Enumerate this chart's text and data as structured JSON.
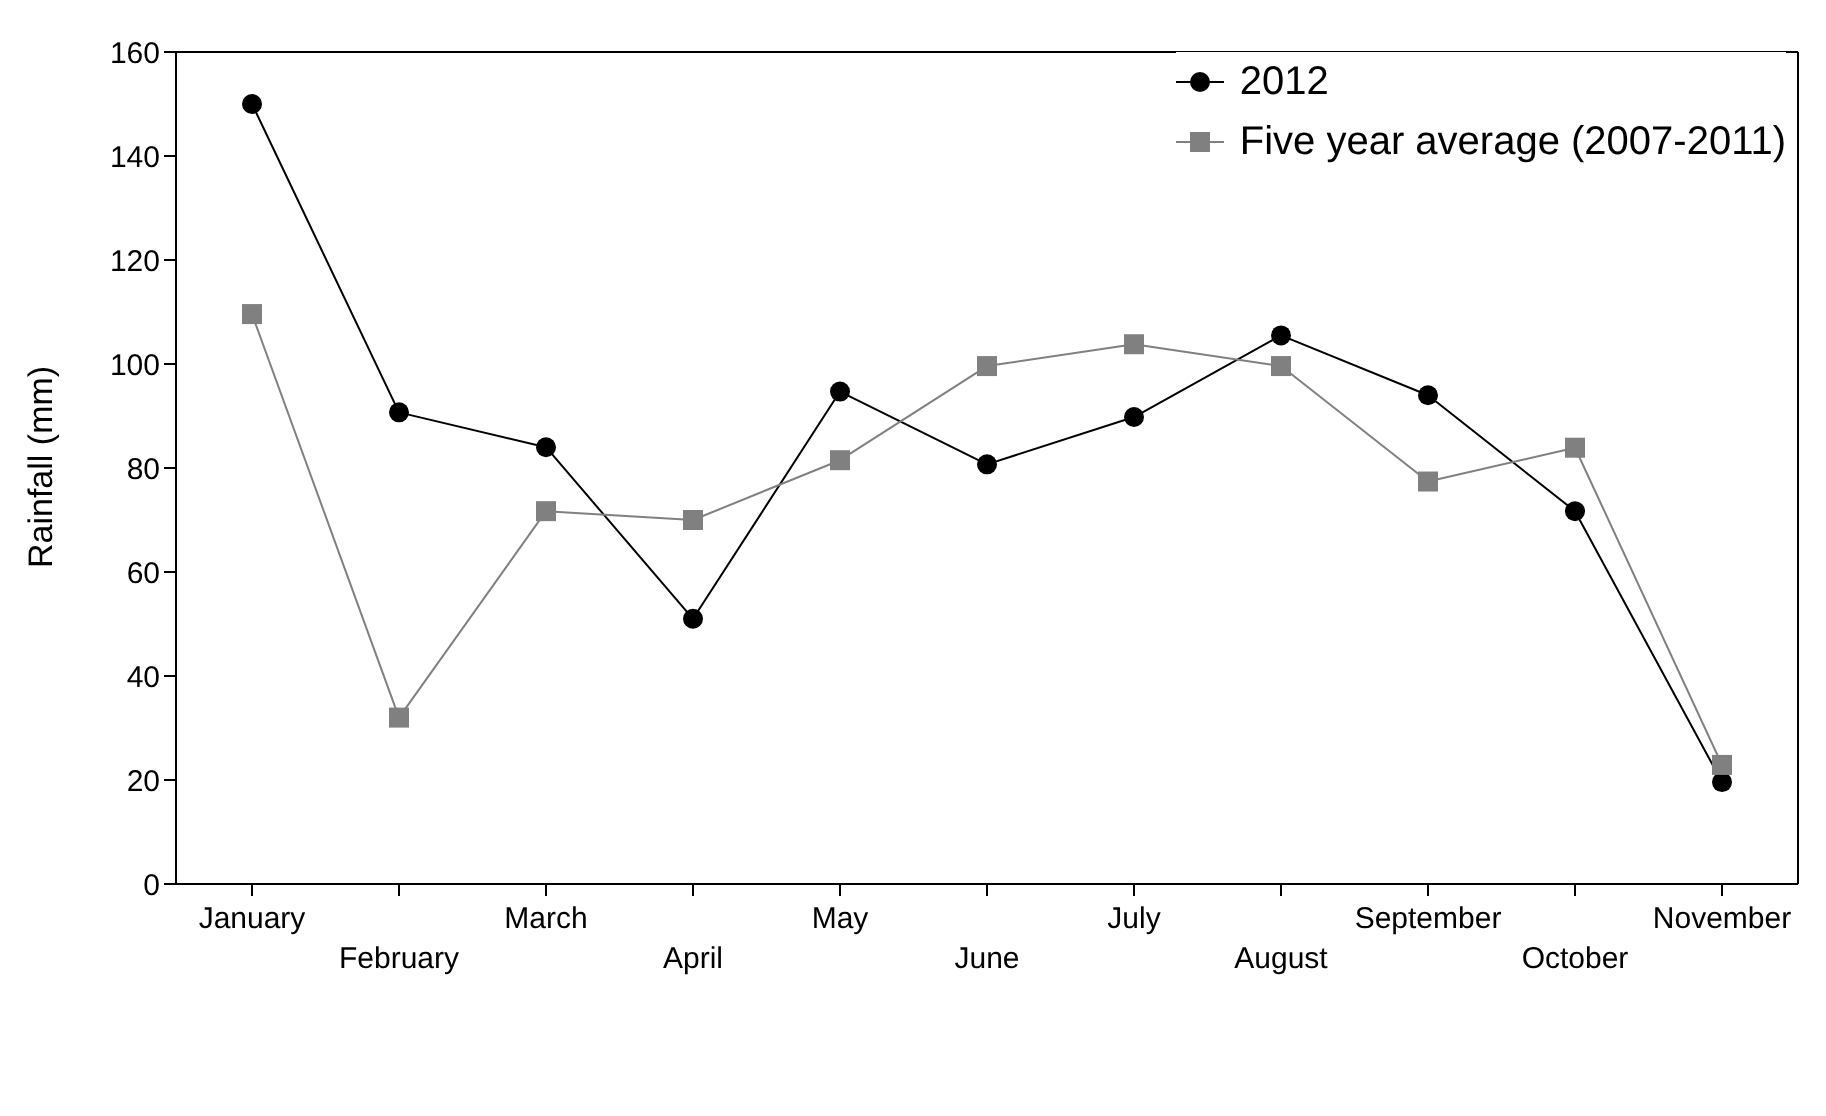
{
  "chart_data": {
    "type": "line",
    "ylabel": "Rainfall (mm)",
    "categories": [
      "January",
      "February",
      "March",
      "April",
      "May",
      "June",
      "July",
      "August",
      "September",
      "October",
      "November"
    ],
    "series": [
      {
        "name": "2012",
        "color": "#000000",
        "marker": "circle",
        "values": [
          150,
          90.7,
          84,
          51,
          94.7,
          80.7,
          89.8,
          105.5,
          94,
          71.7,
          19.6
        ]
      },
      {
        "name": "Five year average (2007-2011)",
        "color": "#808080",
        "marker": "square",
        "values": [
          109.6,
          32,
          71.7,
          70,
          81.5,
          99.6,
          103.8,
          99.6,
          77.4,
          83.9,
          22.9
        ]
      }
    ],
    "ylim": [
      0,
      160
    ],
    "yticks": [
      0,
      20,
      40,
      60,
      80,
      100,
      120,
      140,
      160
    ],
    "grid": false,
    "legend": "top right",
    "line_style": "solid"
  }
}
